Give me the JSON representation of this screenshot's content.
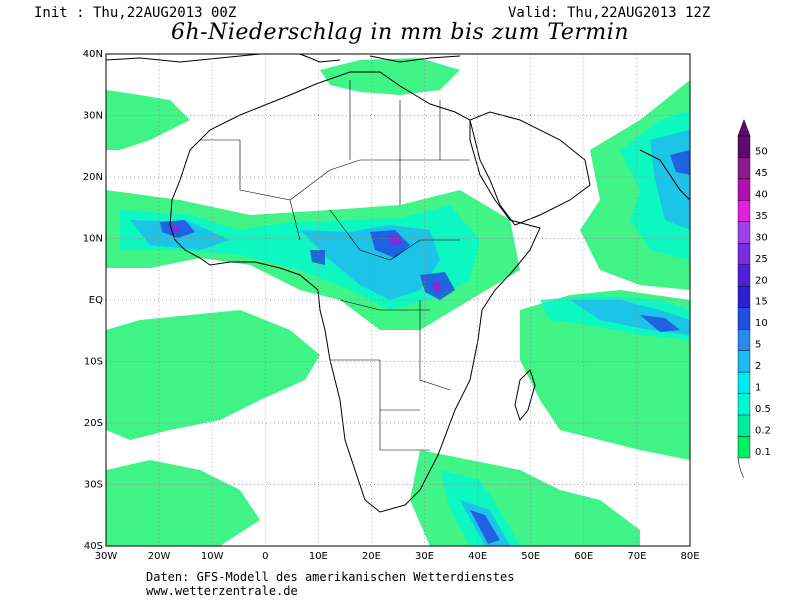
{
  "header": {
    "init": "Init : Thu,22AUG2013 00Z",
    "valid": "Valid: Thu,22AUG2013 12Z",
    "title": "6h-Niederschlag in mm bis zum Termin"
  },
  "map": {
    "lon_ticks": [
      "30W",
      "20W",
      "10W",
      "0",
      "10E",
      "20E",
      "30E",
      "40E",
      "50E",
      "60E",
      "70E",
      "80E"
    ],
    "lat_ticks": [
      "40N",
      "30N",
      "20N",
      "10N",
      "EQ",
      "10S",
      "20S",
      "30S",
      "40S"
    ],
    "region": "Africa",
    "lon_range": [
      -30,
      80
    ],
    "lat_range": [
      -40,
      40
    ]
  },
  "legend": {
    "levels": [
      "50",
      "45",
      "40",
      "35",
      "30",
      "25",
      "20",
      "15",
      "10",
      "5",
      "2",
      "1",
      "0.5",
      "0.2",
      "0.1"
    ],
    "colors": [
      "#5e0a6e",
      "#8a1a8e",
      "#b010b0",
      "#e020e0",
      "#a040e8",
      "#7a2ee0",
      "#5020d8",
      "#2a20d0",
      "#2050e0",
      "#2a88ee",
      "#20b8f0",
      "#00e8f0",
      "#00f8d0",
      "#00ee9c",
      "#00f060"
    ]
  },
  "footer": {
    "source": "Daten: GFS-Modell des amerikanischen Wetterdienstes",
    "site": "www.wetterzentrale.de"
  }
}
